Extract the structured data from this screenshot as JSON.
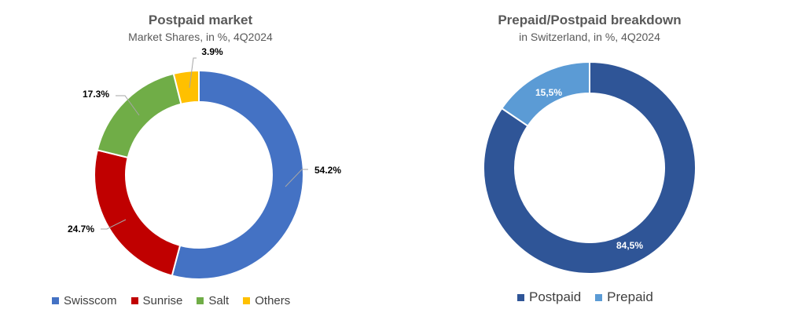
{
  "chart_data": [
    {
      "type": "donut",
      "title": "Postpaid market",
      "subtitle": "Market Shares, in %, 4Q2024",
      "series": [
        {
          "name": "Swisscom",
          "value": 54.2,
          "label": "54.2%",
          "color": "#4472C4"
        },
        {
          "name": "Sunrise",
          "value": 24.7,
          "label": "24.7%",
          "color": "#C00000"
        },
        {
          "name": "Salt",
          "value": 17.3,
          "label": "17.3%",
          "color": "#70AD47"
        },
        {
          "name": "Others",
          "value": 3.9,
          "label": "3.9%",
          "color": "#FFC000"
        }
      ],
      "legend_position": "bottom"
    },
    {
      "type": "donut",
      "title": "Prepaid/Postpaid breakdown",
      "subtitle": "in Switzerland, in %, 4Q2024",
      "series": [
        {
          "name": "Postpaid",
          "value": 84.5,
          "label": "84,5%",
          "color": "#2F5597"
        },
        {
          "name": "Prepaid",
          "value": 15.5,
          "label": "15,5%",
          "color": "#5B9BD5"
        }
      ],
      "legend_position": "bottom"
    }
  ]
}
